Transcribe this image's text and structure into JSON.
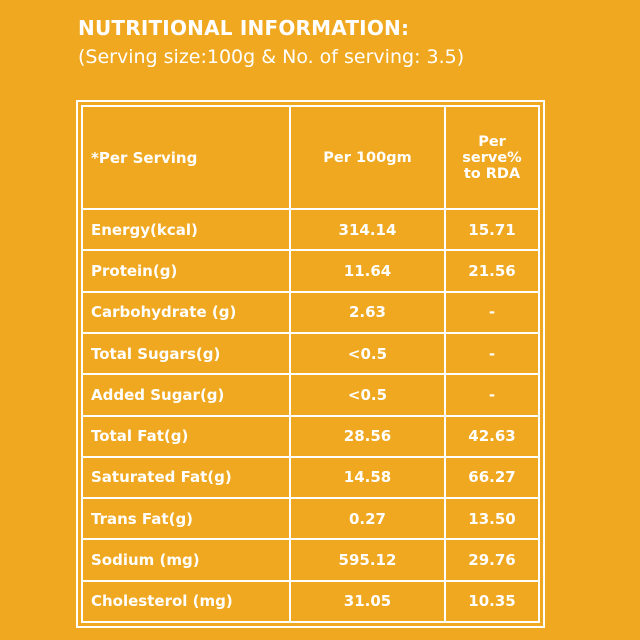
{
  "heading": "NUTRITIONAL INFORMATION:",
  "subheading": "(Serving size:100g & No. of serving: 3.5)",
  "table": {
    "headers": [
      "*Per Serving",
      "Per 100gm",
      "Per serve% to RDA"
    ],
    "rows": [
      [
        "Energy(kcal)",
        "314.14",
        "15.71"
      ],
      [
        "Protein(g)",
        "11.64",
        "21.56"
      ],
      [
        "Carbohydrate (g)",
        "2.63",
        "-"
      ],
      [
        "Total Sugars(g)",
        "<0.5",
        "-"
      ],
      [
        "Added Sugar(g)",
        "<0.5",
        "-"
      ],
      [
        "Total Fat(g)",
        "28.56",
        "42.63"
      ],
      [
        "Saturated Fat(g)",
        "14.58",
        "66.27"
      ],
      [
        "Trans Fat(g)",
        "0.27",
        "13.50"
      ],
      [
        "Sodium (mg)",
        "595.12",
        "29.76"
      ],
      [
        "Cholesterol (mg)",
        "31.05",
        "10.35"
      ]
    ]
  },
  "colors": {
    "background": "#efa81f",
    "text": "#ffffff"
  }
}
